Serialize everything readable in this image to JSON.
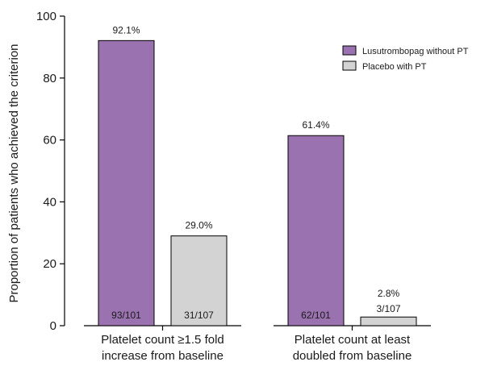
{
  "chart_data": {
    "type": "bar",
    "ylabel": "Proportion of patients who achieved the criterion",
    "xlabel": "",
    "ylim": [
      0,
      100
    ],
    "yticks": [
      "0",
      "20",
      "40",
      "60",
      "80",
      "100"
    ],
    "categories": [
      [
        "Platelet count ≥1.5 fold",
        "increase from baseline"
      ],
      [
        "Platelet count at least",
        "doubled from baseline"
      ]
    ],
    "series": [
      {
        "name": "Lusutrombopag without PT",
        "color": "#9b72b0",
        "values": [
          92.1,
          61.4
        ],
        "pct_labels": [
          "92.1%",
          "61.4%"
        ],
        "count_labels": [
          "93/101",
          "62/101"
        ]
      },
      {
        "name": "Placebo with PT",
        "color": "#d3d3d3",
        "values": [
          29.0,
          2.8
        ],
        "pct_labels": [
          "29.0%",
          "2.8%"
        ],
        "count_labels": [
          "31/107",
          "3/107"
        ]
      }
    ],
    "legend_position": "top-right",
    "grid": false
  }
}
